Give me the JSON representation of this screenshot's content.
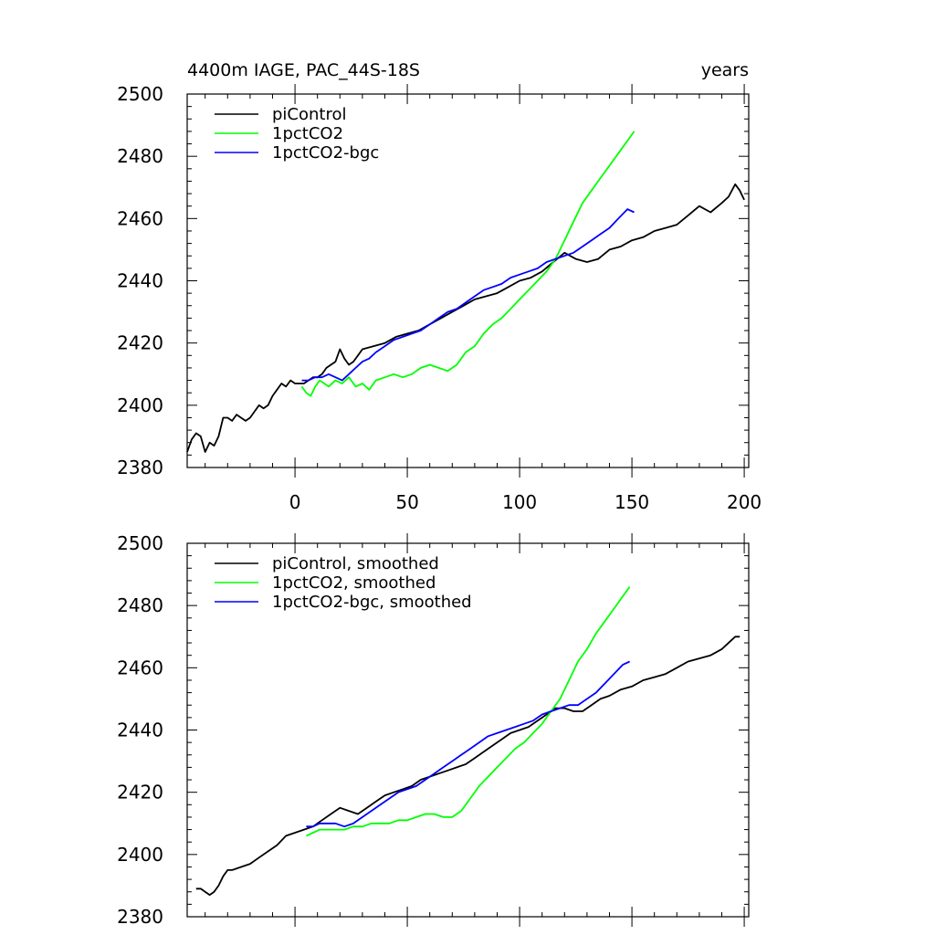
{
  "title_left": "4400m IAGE, PAC_44S-18S",
  "title_right": "years",
  "chart_data": [
    {
      "type": "line",
      "xlim": [
        -48,
        202
      ],
      "ylim": [
        2380,
        2500
      ],
      "xticks": [
        0,
        50,
        100,
        150,
        200
      ],
      "yticks": [
        2380,
        2400,
        2420,
        2440,
        2460,
        2480,
        2500
      ],
      "show_x_tick_labels": true,
      "grid": false,
      "legend_position": "top-left",
      "series": [
        {
          "name": "piControl",
          "color": "#000000",
          "x": [
            -48,
            -46,
            -44,
            -42,
            -40,
            -38,
            -36,
            -34,
            -32,
            -30,
            -28,
            -26,
            -24,
            -22,
            -20,
            -18,
            -16,
            -14,
            -12,
            -10,
            -8,
            -6,
            -4,
            -2,
            0,
            2,
            4,
            6,
            8,
            10,
            12,
            14,
            16,
            18,
            20,
            22,
            24,
            26,
            28,
            30,
            35,
            40,
            45,
            50,
            55,
            60,
            65,
            70,
            75,
            80,
            85,
            90,
            95,
            100,
            105,
            110,
            115,
            120,
            125,
            130,
            135,
            140,
            145,
            150,
            155,
            160,
            165,
            170,
            175,
            180,
            185,
            190,
            193,
            196,
            198,
            200
          ],
          "values": [
            2385,
            2389,
            2391,
            2390,
            2385,
            2388,
            2387,
            2390,
            2396,
            2396,
            2395,
            2397,
            2396,
            2395,
            2396,
            2398,
            2400,
            2399,
            2400,
            2403,
            2405,
            2407,
            2406,
            2408,
            2407,
            2407,
            2407,
            2408,
            2409,
            2409,
            2410,
            2412,
            2413,
            2414,
            2418,
            2415,
            2413,
            2414,
            2416,
            2418,
            2419,
            2420,
            2422,
            2423,
            2424,
            2426,
            2428,
            2430,
            2432,
            2434,
            2435,
            2436,
            2438,
            2440,
            2441,
            2443,
            2446,
            2449,
            2447,
            2446,
            2447,
            2450,
            2451,
            2453,
            2454,
            2456,
            2457,
            2458,
            2461,
            2464,
            2462,
            2465,
            2467,
            2471,
            2469,
            2466
          ]
        },
        {
          "name": "1pctCO2",
          "color": "#00ff00",
          "x": [
            3,
            5,
            7,
            9,
            11,
            13,
            15,
            18,
            21,
            24,
            27,
            30,
            33,
            36,
            40,
            44,
            48,
            52,
            56,
            60,
            64,
            68,
            72,
            76,
            80,
            84,
            88,
            92,
            96,
            100,
            104,
            108,
            112,
            116,
            120,
            124,
            128,
            132,
            136,
            140,
            144,
            148,
            151
          ],
          "values": [
            2406,
            2404,
            2403,
            2406,
            2408,
            2407,
            2406,
            2408,
            2407,
            2409,
            2406,
            2407,
            2405,
            2408,
            2409,
            2410,
            2409,
            2410,
            2412,
            2413,
            2412,
            2411,
            2413,
            2417,
            2419,
            2423,
            2426,
            2428,
            2431,
            2434,
            2437,
            2440,
            2443,
            2447,
            2453,
            2459,
            2465,
            2469,
            2473,
            2477,
            2481,
            2485,
            2488
          ]
        },
        {
          "name": "1pctCO2-bgc",
          "color": "#0000ff",
          "x": [
            3,
            6,
            9,
            12,
            15,
            18,
            21,
            24,
            27,
            30,
            33,
            36,
            40,
            44,
            48,
            52,
            56,
            60,
            64,
            68,
            72,
            76,
            80,
            84,
            88,
            92,
            96,
            100,
            104,
            108,
            112,
            116,
            120,
            124,
            128,
            132,
            136,
            140,
            144,
            148,
            151
          ],
          "values": [
            2408,
            2408,
            2409,
            2409,
            2410,
            2409,
            2408,
            2410,
            2412,
            2414,
            2415,
            2417,
            2419,
            2421,
            2422,
            2423,
            2424,
            2426,
            2428,
            2430,
            2431,
            2433,
            2435,
            2437,
            2438,
            2439,
            2441,
            2442,
            2443,
            2444,
            2446,
            2447,
            2448,
            2449,
            2451,
            2453,
            2455,
            2457,
            2460,
            2463,
            2462
          ]
        }
      ]
    },
    {
      "type": "line",
      "xlim": [
        -48,
        202
      ],
      "ylim": [
        2380,
        2500
      ],
      "xticks": [
        0,
        50,
        100,
        150,
        200
      ],
      "yticks": [
        2380,
        2400,
        2420,
        2440,
        2460,
        2480,
        2500
      ],
      "show_x_tick_labels": false,
      "grid": false,
      "legend_position": "top-left",
      "series": [
        {
          "name": "piControl, smoothed",
          "color": "#000000",
          "x": [
            -44,
            -42,
            -40,
            -38,
            -36,
            -34,
            -32,
            -30,
            -28,
            -24,
            -20,
            -16,
            -12,
            -8,
            -4,
            0,
            4,
            8,
            12,
            16,
            20,
            24,
            28,
            32,
            36,
            40,
            44,
            48,
            52,
            56,
            60,
            64,
            68,
            72,
            76,
            80,
            84,
            88,
            92,
            96,
            100,
            104,
            108,
            112,
            116,
            120,
            124,
            128,
            132,
            136,
            140,
            145,
            150,
            155,
            160,
            165,
            170,
            175,
            180,
            185,
            190,
            193,
            196,
            198
          ],
          "values": [
            2389,
            2389,
            2388,
            2387,
            2388,
            2390,
            2393,
            2395,
            2395,
            2396,
            2397,
            2399,
            2401,
            2403,
            2406,
            2407,
            2408,
            2409,
            2411,
            2413,
            2415,
            2414,
            2413,
            2415,
            2417,
            2419,
            2420,
            2421,
            2422,
            2424,
            2425,
            2426,
            2427,
            2428,
            2429,
            2431,
            2433,
            2435,
            2437,
            2439,
            2440,
            2441,
            2443,
            2445,
            2447,
            2447,
            2446,
            2446,
            2448,
            2450,
            2451,
            2453,
            2454,
            2456,
            2457,
            2458,
            2460,
            2462,
            2463,
            2464,
            2466,
            2468,
            2470,
            2470
          ]
        },
        {
          "name": "1pctCO2, smoothed",
          "color": "#00ff00",
          "x": [
            5,
            8,
            11,
            14,
            18,
            22,
            26,
            30,
            34,
            38,
            42,
            46,
            50,
            54,
            58,
            62,
            66,
            70,
            74,
            78,
            82,
            86,
            90,
            94,
            98,
            102,
            106,
            110,
            114,
            118,
            122,
            126,
            130,
            134,
            138,
            142,
            146,
            149
          ],
          "values": [
            2406,
            2407,
            2408,
            2408,
            2408,
            2408,
            2409,
            2409,
            2410,
            2410,
            2410,
            2411,
            2411,
            2412,
            2413,
            2413,
            2412,
            2412,
            2414,
            2418,
            2422,
            2425,
            2428,
            2431,
            2434,
            2436,
            2439,
            2442,
            2446,
            2450,
            2456,
            2462,
            2466,
            2471,
            2475,
            2479,
            2483,
            2486
          ]
        },
        {
          "name": "1pctCO2-bgc, smoothed",
          "color": "#0000ff",
          "x": [
            5,
            8,
            11,
            14,
            18,
            22,
            26,
            30,
            34,
            38,
            42,
            46,
            50,
            54,
            58,
            62,
            66,
            70,
            74,
            78,
            82,
            86,
            90,
            94,
            98,
            102,
            106,
            110,
            114,
            118,
            122,
            126,
            130,
            134,
            138,
            142,
            146,
            149
          ],
          "values": [
            2409,
            2409,
            2410,
            2410,
            2410,
            2409,
            2410,
            2412,
            2414,
            2416,
            2418,
            2420,
            2421,
            2422,
            2424,
            2426,
            2428,
            2430,
            2432,
            2434,
            2436,
            2438,
            2439,
            2440,
            2441,
            2442,
            2443,
            2445,
            2446,
            2447,
            2448,
            2448,
            2450,
            2452,
            2455,
            2458,
            2461,
            2462
          ]
        }
      ]
    }
  ]
}
